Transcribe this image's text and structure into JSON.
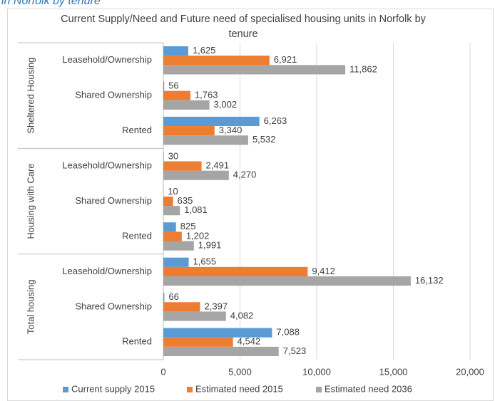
{
  "caption": "in Norfolk by tenure",
  "chart_data": {
    "type": "bar",
    "orientation": "horizontal",
    "title": "Current Supply/Need and Future need of specialised housing units in Norfolk by tenure",
    "groups": [
      "Sheltered Housing",
      "Housing with Care",
      "Total housing"
    ],
    "categories": [
      "Leasehold/Ownership",
      "Shared Ownership",
      "Rented",
      "Leasehold/Ownership",
      "Shared Ownership",
      "Rented",
      "Leasehold/Ownership",
      "Shared Ownership",
      "Rented"
    ],
    "series": [
      {
        "name": "Current supply 2015",
        "color": "#5b9bd5",
        "values": [
          1625,
          56,
          6263,
          30,
          10,
          825,
          1655,
          66,
          7088
        ],
        "value_labels": [
          "1,625",
          "56",
          "6,263",
          "30",
          "10",
          "825",
          "1,655",
          "66",
          "7,088"
        ]
      },
      {
        "name": "Estimated need 2015",
        "color": "#ed7d31",
        "values": [
          6921,
          1763,
          3340,
          2491,
          635,
          1202,
          9412,
          2397,
          4542
        ],
        "value_labels": [
          "6,921",
          "1,763",
          "3,340",
          "2,491",
          "635",
          "1,202",
          "9,412",
          "2,397",
          "4,542"
        ]
      },
      {
        "name": "Estimated need 2036",
        "color": "#a5a5a5",
        "values": [
          11862,
          3002,
          5532,
          4270,
          1081,
          1991,
          16132,
          4082,
          7523
        ],
        "value_labels": [
          "11,862",
          "3,002",
          "5,532",
          "4,270",
          "1,081",
          "1,991",
          "16,132",
          "4,082",
          "7,523"
        ]
      }
    ],
    "xlim": [
      0,
      20000
    ],
    "xticks": [
      0,
      {
        "value": 5000,
        "label": "5,000"
      },
      {
        "value": 10000,
        "label": "10,000"
      },
      {
        "value": 15000,
        "label": "15,000"
      },
      {
        "value": 20000,
        "label": "20,000"
      }
    ],
    "grid": true,
    "legend": "bottom"
  }
}
